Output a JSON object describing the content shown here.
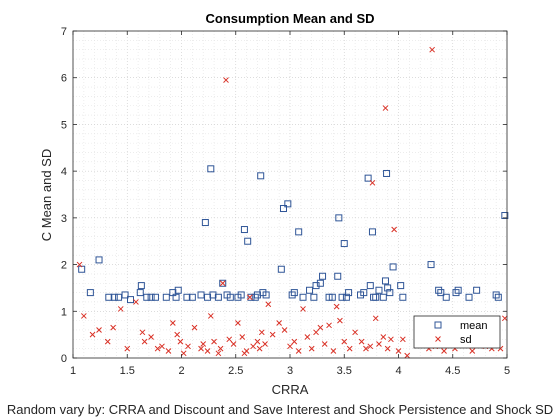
{
  "chart_data": {
    "type": "scatter",
    "title": "Consumption Mean and SD",
    "xlabel": "CRRA",
    "ylabel": "C Mean and SD",
    "caption": "Random vary by: CRRA and Discount and Save Interest and Shock Persistence and Shock SD",
    "xlim": [
      1,
      5
    ],
    "ylim": [
      0,
      7
    ],
    "xticks": [
      1,
      1.5,
      2,
      2.5,
      3,
      3.5,
      4,
      4.5,
      5
    ],
    "xtick_labels": [
      "1",
      "1.5",
      "2",
      "2.5",
      "3",
      "3.5",
      "4",
      "4.5",
      "5"
    ],
    "yticks": [
      0,
      1,
      2,
      3,
      4,
      5,
      6,
      7
    ],
    "ytick_labels": [
      "0",
      "1",
      "2",
      "3",
      "4",
      "5",
      "6",
      "7"
    ],
    "grid": "dotted, major and minor",
    "legend_position": "bottom-right",
    "series": [
      {
        "name": "mean",
        "marker": "square",
        "color": "#2F5597",
        "points": [
          [
            1.08,
            1.9
          ],
          [
            1.16,
            1.4
          ],
          [
            1.24,
            2.1
          ],
          [
            1.33,
            1.3
          ],
          [
            1.38,
            1.3
          ],
          [
            1.42,
            1.3
          ],
          [
            1.48,
            1.35
          ],
          [
            1.53,
            1.25
          ],
          [
            1.62,
            1.4
          ],
          [
            1.63,
            1.55
          ],
          [
            1.68,
            1.3
          ],
          [
            1.72,
            1.3
          ],
          [
            1.76,
            1.3
          ],
          [
            1.86,
            1.3
          ],
          [
            1.92,
            1.4
          ],
          [
            1.95,
            1.3
          ],
          [
            1.97,
            1.45
          ],
          [
            2.05,
            1.3
          ],
          [
            2.1,
            1.3
          ],
          [
            2.18,
            1.35
          ],
          [
            2.22,
            2.9
          ],
          [
            2.24,
            1.3
          ],
          [
            2.27,
            4.05
          ],
          [
            2.29,
            1.35
          ],
          [
            2.34,
            1.3
          ],
          [
            2.38,
            1.6
          ],
          [
            2.42,
            1.35
          ],
          [
            2.45,
            1.3
          ],
          [
            2.52,
            1.3
          ],
          [
            2.55,
            1.35
          ],
          [
            2.58,
            2.75
          ],
          [
            2.61,
            2.5
          ],
          [
            2.64,
            1.3
          ],
          [
            2.68,
            1.3
          ],
          [
            2.7,
            1.35
          ],
          [
            2.73,
            3.9
          ],
          [
            2.75,
            1.4
          ],
          [
            2.78,
            1.35
          ],
          [
            2.92,
            1.9
          ],
          [
            2.94,
            3.2
          ],
          [
            2.98,
            3.3
          ],
          [
            3.02,
            1.35
          ],
          [
            3.04,
            1.4
          ],
          [
            3.08,
            2.7
          ],
          [
            3.12,
            1.3
          ],
          [
            3.18,
            1.45
          ],
          [
            3.22,
            1.3
          ],
          [
            3.24,
            1.55
          ],
          [
            3.28,
            1.6
          ],
          [
            3.3,
            1.75
          ],
          [
            3.36,
            1.3
          ],
          [
            3.39,
            1.3
          ],
          [
            3.44,
            1.75
          ],
          [
            3.45,
            3.0
          ],
          [
            3.48,
            1.3
          ],
          [
            3.5,
            2.45
          ],
          [
            3.52,
            1.3
          ],
          [
            3.54,
            1.4
          ],
          [
            3.65,
            1.35
          ],
          [
            3.68,
            1.4
          ],
          [
            3.72,
            3.85
          ],
          [
            3.74,
            1.55
          ],
          [
            3.76,
            2.7
          ],
          [
            3.77,
            1.3
          ],
          [
            3.79,
            1.3
          ],
          [
            3.82,
            1.45
          ],
          [
            3.86,
            1.3
          ],
          [
            3.88,
            1.65
          ],
          [
            3.89,
            3.95
          ],
          [
            3.9,
            1.5
          ],
          [
            3.92,
            1.4
          ],
          [
            3.95,
            1.95
          ],
          [
            4.02,
            1.55
          ],
          [
            4.04,
            1.3
          ],
          [
            4.3,
            2.0
          ],
          [
            4.37,
            1.45
          ],
          [
            4.39,
            1.4
          ],
          [
            4.44,
            1.3
          ],
          [
            4.53,
            1.4
          ],
          [
            4.55,
            1.45
          ],
          [
            4.65,
            1.3
          ],
          [
            4.72,
            1.45
          ],
          [
            4.9,
            1.35
          ],
          [
            4.92,
            1.3
          ],
          [
            4.98,
            3.05
          ]
        ]
      },
      {
        "name": "sd",
        "marker": "x",
        "color": "#D93025",
        "points": [
          [
            1.06,
            2.0
          ],
          [
            1.1,
            0.9
          ],
          [
            1.18,
            0.5
          ],
          [
            1.24,
            0.6
          ],
          [
            1.32,
            0.35
          ],
          [
            1.37,
            0.65
          ],
          [
            1.44,
            1.05
          ],
          [
            1.5,
            0.2
          ],
          [
            1.58,
            1.2
          ],
          [
            1.64,
            0.55
          ],
          [
            1.66,
            0.35
          ],
          [
            1.72,
            0.45
          ],
          [
            1.78,
            0.2
          ],
          [
            1.82,
            0.25
          ],
          [
            1.88,
            0.15
          ],
          [
            1.92,
            0.75
          ],
          [
            1.96,
            0.5
          ],
          [
            1.99,
            0.35
          ],
          [
            2.02,
            0.1
          ],
          [
            2.06,
            0.25
          ],
          [
            2.12,
            0.65
          ],
          [
            2.18,
            0.2
          ],
          [
            2.2,
            0.3
          ],
          [
            2.24,
            0.15
          ],
          [
            2.27,
            0.9
          ],
          [
            2.3,
            0.35
          ],
          [
            2.34,
            0.1
          ],
          [
            2.36,
            0.2
          ],
          [
            2.38,
            1.6
          ],
          [
            2.41,
            5.95
          ],
          [
            2.44,
            0.4
          ],
          [
            2.48,
            0.3
          ],
          [
            2.52,
            0.75
          ],
          [
            2.56,
            0.45
          ],
          [
            2.58,
            0.1
          ],
          [
            2.6,
            0.15
          ],
          [
            2.63,
            1.3
          ],
          [
            2.66,
            0.25
          ],
          [
            2.7,
            0.35
          ],
          [
            2.72,
            0.2
          ],
          [
            2.74,
            0.55
          ],
          [
            2.77,
            0.3
          ],
          [
            2.8,
            1.15
          ],
          [
            2.84,
            0.5
          ],
          [
            2.9,
            0.75
          ],
          [
            2.95,
            0.6
          ],
          [
            3.0,
            0.25
          ],
          [
            3.04,
            0.35
          ],
          [
            3.08,
            0.15
          ],
          [
            3.12,
            1.05
          ],
          [
            3.16,
            0.45
          ],
          [
            3.2,
            0.2
          ],
          [
            3.24,
            0.55
          ],
          [
            3.28,
            0.65
          ],
          [
            3.32,
            0.3
          ],
          [
            3.36,
            0.7
          ],
          [
            3.4,
            0.15
          ],
          [
            3.43,
            1.1
          ],
          [
            3.46,
            0.8
          ],
          [
            3.5,
            0.35
          ],
          [
            3.55,
            0.2
          ],
          [
            3.6,
            0.55
          ],
          [
            3.66,
            0.35
          ],
          [
            3.7,
            0.2
          ],
          [
            3.74,
            0.25
          ],
          [
            3.76,
            3.75
          ],
          [
            3.79,
            0.85
          ],
          [
            3.82,
            0.3
          ],
          [
            3.86,
            0.45
          ],
          [
            3.88,
            5.35
          ],
          [
            3.9,
            0.2
          ],
          [
            3.93,
            0.4
          ],
          [
            3.96,
            2.75
          ],
          [
            4.0,
            0.15
          ],
          [
            4.04,
            0.4
          ],
          [
            4.08,
            0.05
          ],
          [
            4.22,
            0.4
          ],
          [
            4.28,
            0.2
          ],
          [
            4.31,
            6.6
          ],
          [
            4.34,
            0.25
          ],
          [
            4.38,
            0.35
          ],
          [
            4.42,
            0.15
          ],
          [
            4.48,
            0.45
          ],
          [
            4.52,
            0.2
          ],
          [
            4.58,
            0.3
          ],
          [
            4.62,
            0.6
          ],
          [
            4.68,
            0.15
          ],
          [
            4.74,
            0.35
          ],
          [
            4.8,
            0.25
          ],
          [
            4.86,
            0.2
          ],
          [
            4.94,
            0.2
          ],
          [
            4.98,
            0.85
          ]
        ]
      }
    ]
  }
}
